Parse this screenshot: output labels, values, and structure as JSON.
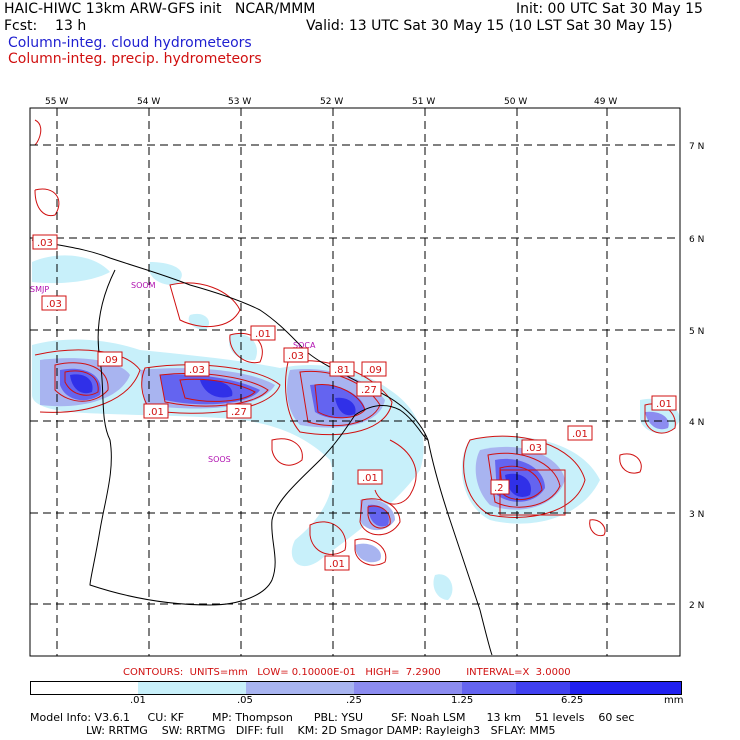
{
  "header": {
    "line1_left": "HAIC-HIWC 13km ARW-GFS init   NCAR/MMM",
    "line1_right": "Init: 00 UTC Sat 30 May 15",
    "fcst_label": "Fcst:    13 h",
    "valid": "Valid: 13 UTC Sat 30 May 15 (10 LST Sat 30 May 15)",
    "field1": "Column-integ. cloud hydrometeors",
    "field2": "Column-integ. precip. hydrometeors"
  },
  "map": {
    "lon_labels": [
      "55 W",
      "54 W",
      "53 W",
      "52 W",
      "51 W",
      "50 W",
      "49 W"
    ],
    "lat_labels": [
      "7 N",
      "6 N",
      "5 N",
      "4 N",
      "3 N",
      "2 N"
    ],
    "stations": [
      "SMJP",
      "SOOM",
      "SOCA",
      "SOOS"
    ],
    "value_labels": [
      ".03",
      ".03",
      ".09",
      ".03",
      ".01",
      ".27",
      ".01",
      ".03",
      ".81",
      ".09",
      ".27",
      ".01",
      ".01",
      ".03",
      ".01",
      ".01",
      ".2"
    ]
  },
  "footer": {
    "contours": "CONTOURS:  UNITS=mm   LOW= 0.10000E-01   HIGH=  7.2900        INTERVAL=X  3.0000",
    "colorbar_ticks": [
      ".01",
      ".05",
      ".25",
      "1.25",
      "6.25"
    ],
    "colorbar_unit": "mm",
    "colorbar_colors": [
      "#ffffff",
      "#c8f0fa",
      "#a8b4f0",
      "#8c8cf0",
      "#6464f0",
      "#4040f0",
      "#2020f0"
    ],
    "model_info1": "Model Info: V3.6.1     CU: KF        MP: Thompson      PBL: YSU        SF: Noah LSM      13 km    51 levels    60 sec",
    "model_info2": "                LW: RRTMG    SW: RRTMG   DIFF: full    KM: 2D Smagor DAMP: Rayleigh3   SFLAY: MM5"
  }
}
